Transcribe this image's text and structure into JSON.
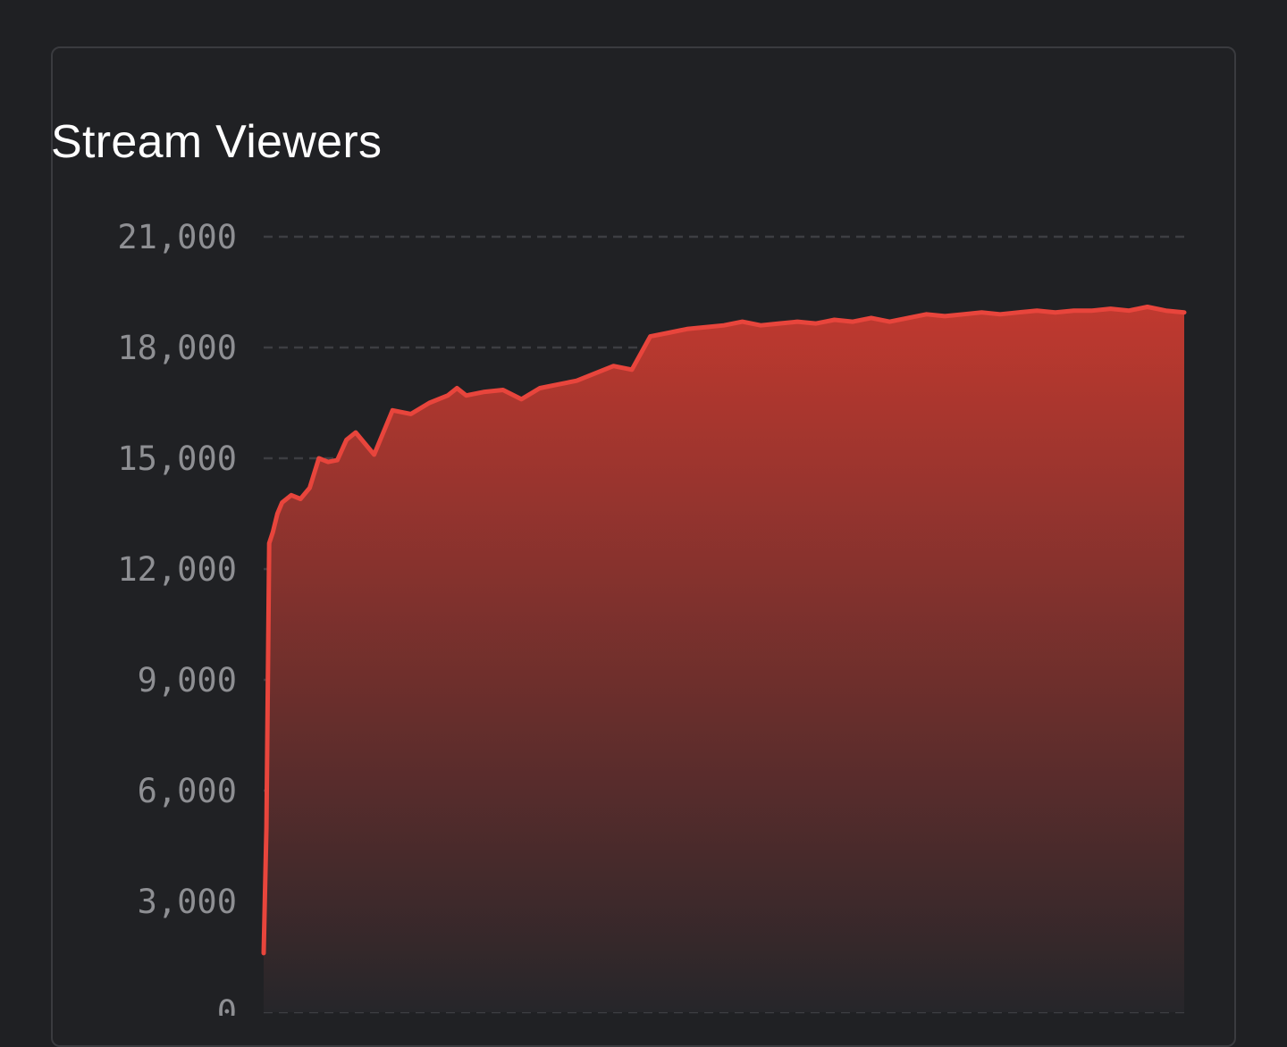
{
  "card": {
    "title": "Stream Viewers"
  },
  "chart_data": {
    "type": "area",
    "title": "Stream Viewers",
    "xlabel": "",
    "ylabel": "",
    "ylim": [
      0,
      21000
    ],
    "y_ticks": [
      0,
      3000,
      6000,
      9000,
      12000,
      15000,
      18000,
      21000
    ],
    "y_tick_labels": [
      "0",
      "3,000",
      "6,000",
      "9,000",
      "12,000",
      "15,000",
      "18,000",
      "21,000"
    ],
    "grid": true,
    "grid_style": "dashed",
    "line_color": "#e8453c",
    "fill_top_color": "#c0392f",
    "fill_bottom_color": "#26262a",
    "x": [
      0,
      0.3,
      0.6,
      1,
      1.5,
      2,
      3,
      4,
      5,
      6,
      7,
      8,
      9,
      10,
      12,
      14,
      16,
      18,
      20,
      21,
      22,
      24,
      26,
      28,
      30,
      32,
      34,
      36,
      38,
      40,
      42,
      44,
      46,
      48,
      50,
      52,
      54,
      56,
      58,
      60,
      61,
      62,
      64,
      66,
      68,
      70,
      72,
      74,
      76,
      78,
      80,
      82,
      84,
      86,
      88,
      90,
      92,
      94,
      96,
      98,
      100
    ],
    "series": [
      {
        "values": [
          1600,
          5000,
          12700,
          13000,
          13500,
          13800,
          14000,
          13900,
          14200,
          15000,
          14900,
          14950,
          15500,
          15700,
          15100,
          16300,
          16200,
          16500,
          16700,
          16900,
          16700,
          16800,
          16850,
          16600,
          16900,
          17000,
          17100,
          17300,
          17500,
          17400,
          18300,
          18400,
          18500,
          18550,
          18600,
          18700,
          18600,
          18650,
          18700,
          18650,
          18700,
          18750,
          18700,
          18800,
          18700,
          18800,
          18900,
          18850,
          18900,
          18950,
          18900,
          18950,
          19000,
          18950,
          19000,
          19000,
          19050,
          19000,
          19100,
          19000,
          18950
        ]
      }
    ]
  }
}
